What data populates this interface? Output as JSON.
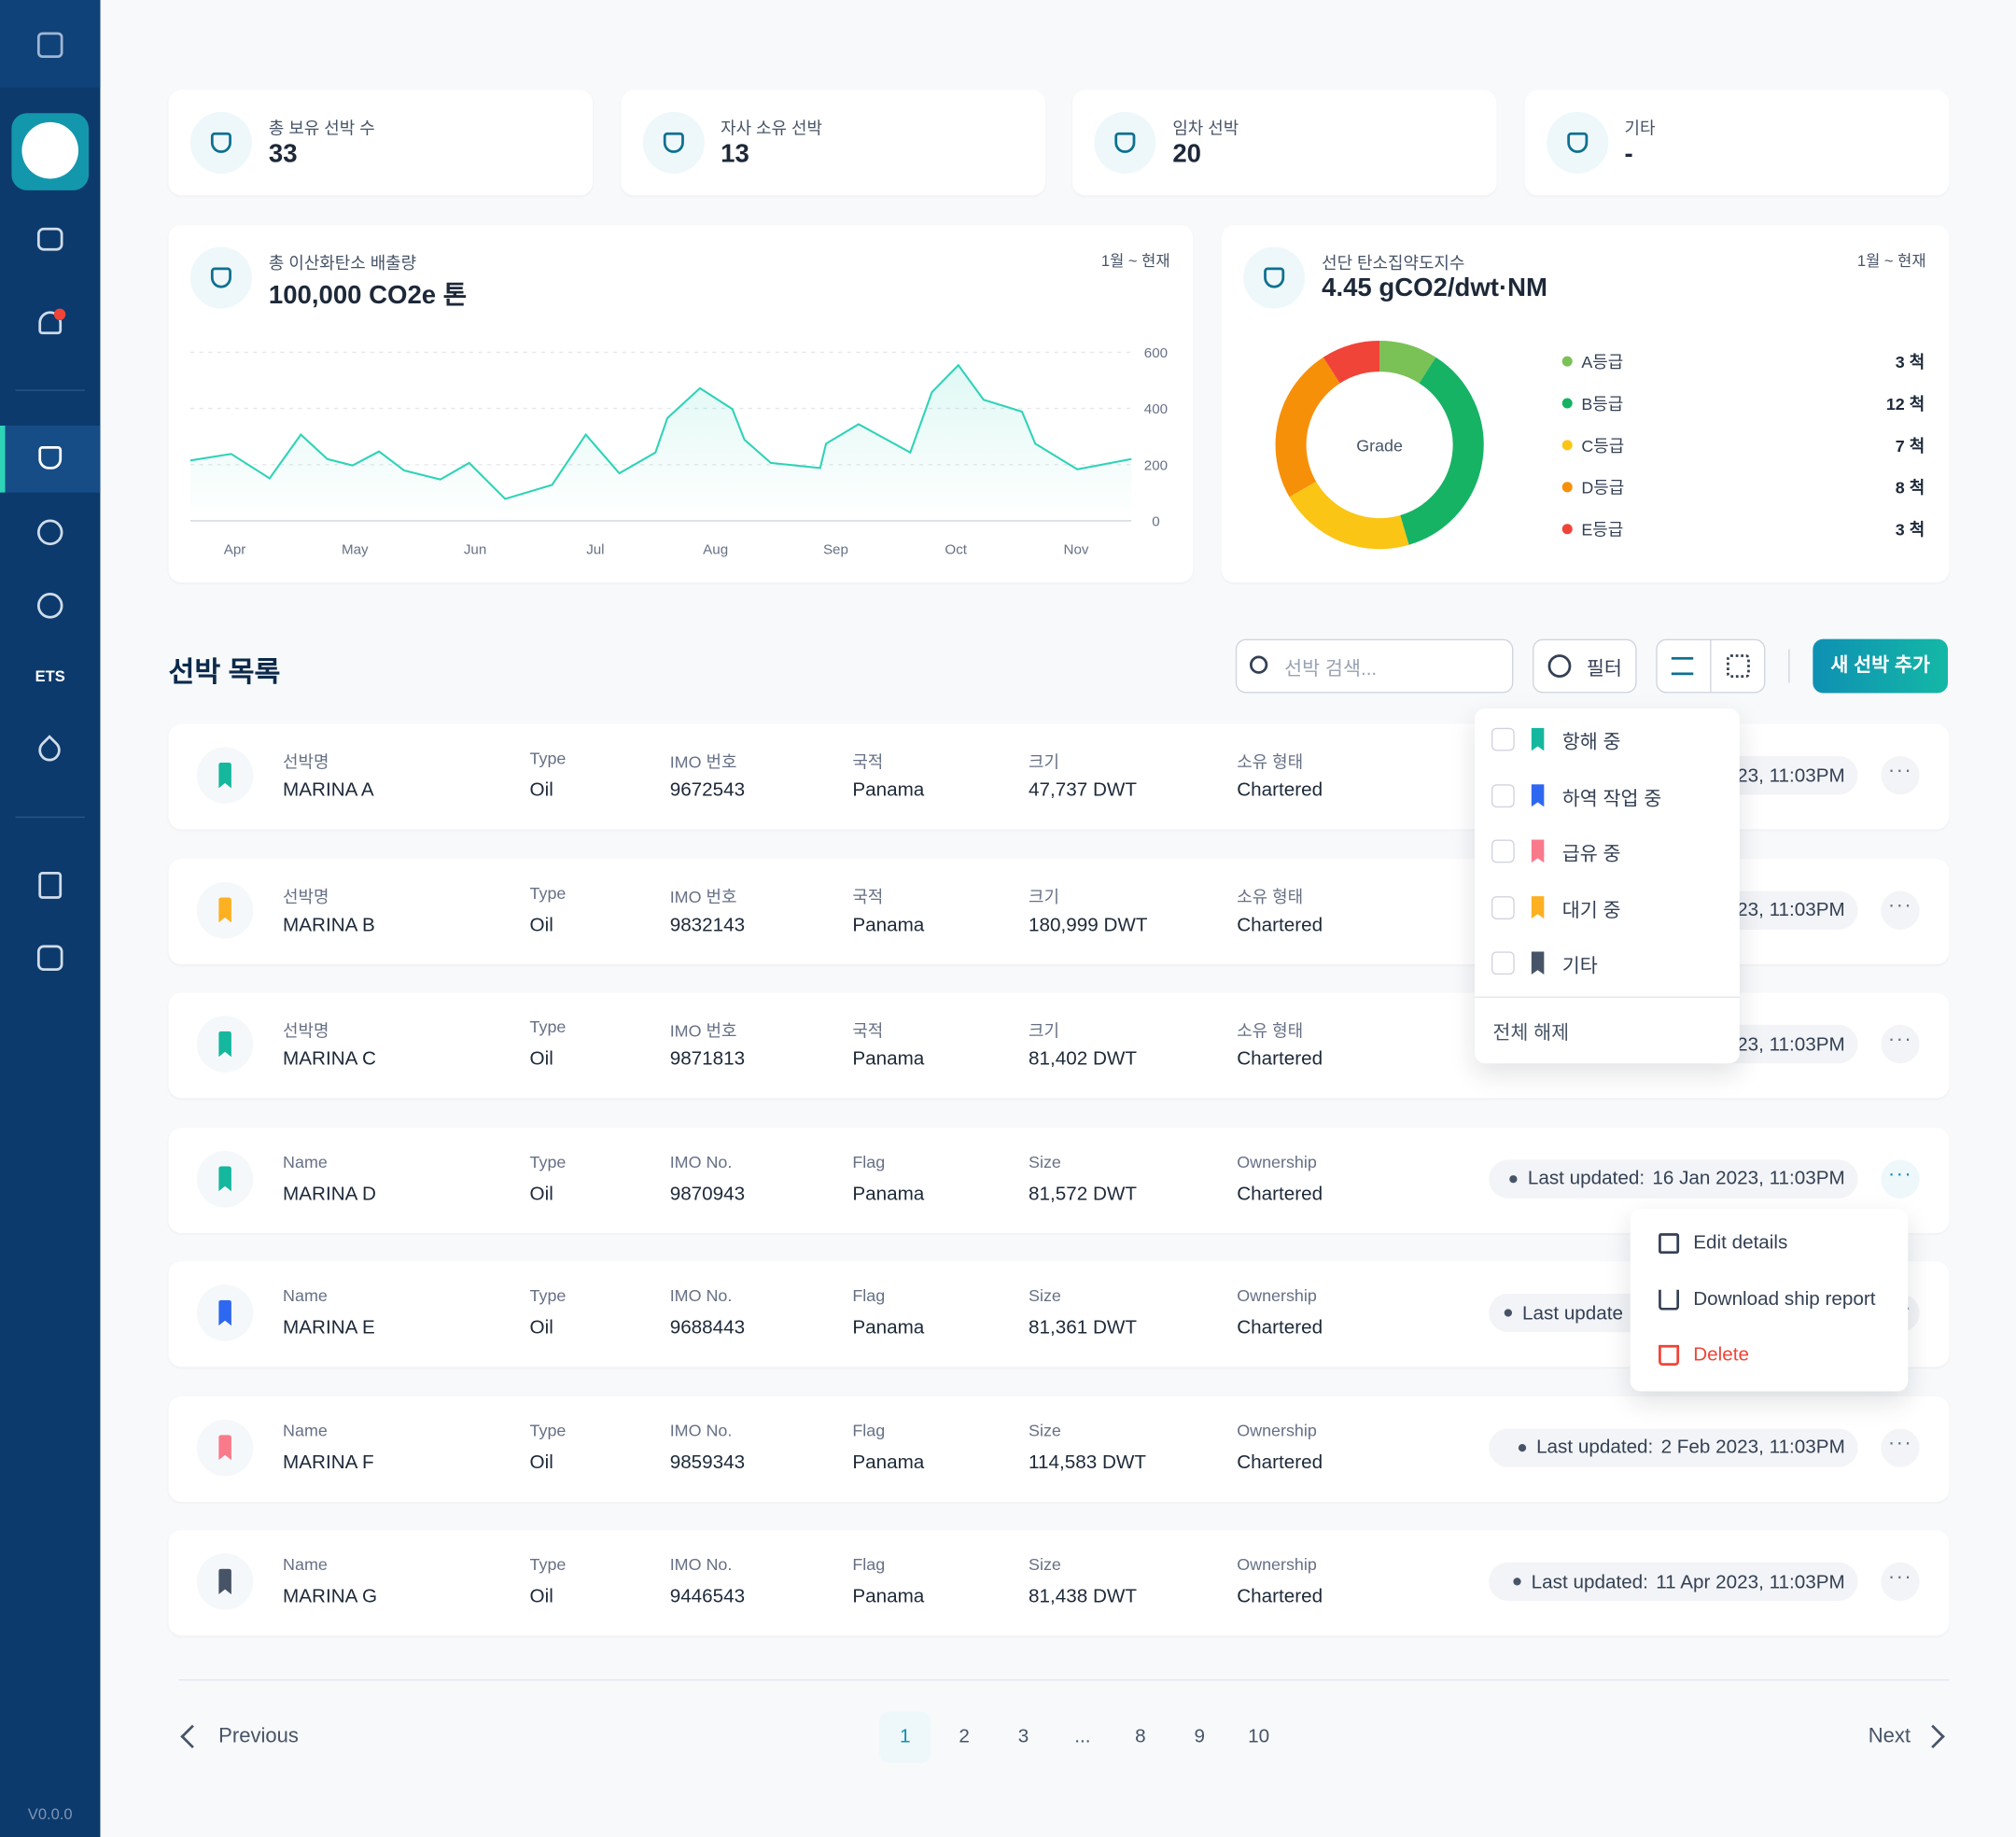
{
  "sidebar": {
    "ets": "ETS",
    "version": "V0.0.0"
  },
  "stats": [
    {
      "label": "총 보유 선박 수",
      "value": 33
    },
    {
      "label": "자사 소유 선박",
      "value": 13
    },
    {
      "label": "임차 선박",
      "value": 20
    },
    {
      "label": "기타",
      "value": "-"
    }
  ],
  "emissions": {
    "title": "총 이산화탄소 배출량",
    "value": "100,000 CO2e 톤",
    "period": "1월 ~ 현재",
    "chart": {
      "type": "line",
      "color": "#2ed3b7",
      "x": [
        -0.37,
        -0.03,
        0.29,
        0.55,
        0.77,
        0.98,
        1.2,
        1.41,
        1.71,
        1.95,
        2.25,
        2.64,
        2.92,
        3.2,
        3.5,
        3.6,
        3.87,
        4.14,
        4.24,
        4.46,
        4.87,
        4.92,
        5.19,
        5.62,
        5.8,
        6.02,
        6.23,
        6.55,
        6.66,
        7.01,
        7.46
      ],
      "values": [
        215,
        238,
        151,
        307,
        220,
        197,
        247,
        179,
        147,
        206,
        78,
        128,
        307,
        169,
        243,
        366,
        472,
        398,
        289,
        206,
        188,
        275,
        344,
        243,
        458,
        554,
        431,
        389,
        275,
        183,
        220
      ],
      "xlim": [
        -0.37,
        7.46
      ],
      "xticks": [
        {
          "value": 0,
          "label": "Apr"
        },
        {
          "value": 1,
          "label": "May"
        },
        {
          "value": 2,
          "label": "Jun"
        },
        {
          "value": 3,
          "label": "Jul"
        },
        {
          "value": 4,
          "label": "Aug"
        },
        {
          "value": 5,
          "label": "Sep"
        },
        {
          "value": 6,
          "label": "Oct"
        },
        {
          "value": 7,
          "label": "Nov"
        }
      ],
      "ylim": [
        0,
        600
      ],
      "yticks": [
        0,
        200,
        400,
        600
      ],
      "grid": true
    }
  },
  "intensity": {
    "title": "선단 탄소집약도지수",
    "value": "4.45 gCO2/dwt·NM",
    "period": "1월 ~ 현재",
    "chart": {
      "type": "pie",
      "center_label": "Grade",
      "categories": [
        "A등급",
        "B등급",
        "C등급",
        "D등급",
        "E등급"
      ],
      "values": [
        3,
        12,
        7,
        8,
        3
      ],
      "value_labels": [
        "3 척",
        "12 척",
        "7 척",
        "8 척",
        "3 척"
      ],
      "colors": [
        "#7ac156",
        "#16b364",
        "#fac515",
        "#f79009",
        "#f04438"
      ]
    }
  },
  "list": {
    "title": "선박 목록",
    "search_placeholder": "선박 검색...",
    "filter": "필터",
    "add": "새 선박 추가",
    "ships": [
      {
        "color": "#15b79e",
        "labels": [
          "선박명",
          "Type",
          "IMO 번호",
          "국적",
          "크기",
          "소유 형태"
        ],
        "values": [
          "MARINA A",
          "Oil",
          "9672543",
          "Panama",
          "47,737 DWT",
          "Chartered"
        ],
        "updated": "23, 11:03PM"
      },
      {
        "color": "#fdb022",
        "labels": [
          "선박명",
          "Type",
          "IMO 번호",
          "국적",
          "크기",
          "소유 형태"
        ],
        "values": [
          "MARINA B",
          "Oil",
          "9832143",
          "Panama",
          "180,999 DWT",
          "Chartered"
        ],
        "updated": "23, 11:03PM"
      },
      {
        "color": "#15b79e",
        "labels": [
          "선박명",
          "Type",
          "IMO 번호",
          "국적",
          "크기",
          "소유 형태"
        ],
        "values": [
          "MARINA C",
          "Oil",
          "9871813",
          "Panama",
          "81,402 DWT",
          "Chartered"
        ],
        "updated": "23, 11:03PM"
      },
      {
        "color": "#15b79e",
        "labels": [
          "Name",
          "Type",
          "IMO No.",
          "Flag",
          "Size",
          "Ownership"
        ],
        "values": [
          "MARINA D",
          "Oil",
          "9870943",
          "Panama",
          "81,572 DWT",
          "Chartered"
        ],
        "updated_label": "Last updated:",
        "updated": "16 Jan 2023, 11:03PM"
      },
      {
        "color": "#2e68f0",
        "labels": [
          "Name",
          "Type",
          "IMO No.",
          "Flag",
          "Size",
          "Ownership"
        ],
        "values": [
          "MARINA E",
          "Oil",
          "9688443",
          "Panama",
          "81,361 DWT",
          "Chartered"
        ],
        "updated_label": "Last update"
      },
      {
        "color": "#f97a8a",
        "labels": [
          "Name",
          "Type",
          "IMO No.",
          "Flag",
          "Size",
          "Ownership"
        ],
        "values": [
          "MARINA F",
          "Oil",
          "9859343",
          "Panama",
          "114,583 DWT",
          "Chartered"
        ],
        "updated_label": "Last updated:",
        "updated": "2 Feb 2023, 11:03PM"
      },
      {
        "color": "#475467",
        "labels": [
          "Name",
          "Type",
          "IMO No.",
          "Flag",
          "Size",
          "Ownership"
        ],
        "values": [
          "MARINA G",
          "Oil",
          "9446543",
          "Panama",
          "81,438 DWT",
          "Chartered"
        ],
        "updated_label": "Last updated:",
        "updated": "11 Apr 2023, 11:03PM"
      }
    ],
    "filter_menu": {
      "options": [
        {
          "label": "항해 중",
          "color": "#15b79e"
        },
        {
          "label": "하역 작업 중",
          "color": "#2e68f0"
        },
        {
          "label": "급유 중",
          "color": "#f97a8a"
        },
        {
          "label": "대기 중",
          "color": "#fdb022"
        },
        {
          "label": "기타",
          "color": "#475467"
        }
      ],
      "clear": "전체 해제"
    },
    "action_menu": [
      "Edit details",
      "Download ship report",
      "Delete"
    ],
    "pagination": {
      "previous": "Previous",
      "next": "Next",
      "pages": [
        1,
        2,
        3,
        "...",
        8,
        9,
        10
      ]
    }
  }
}
